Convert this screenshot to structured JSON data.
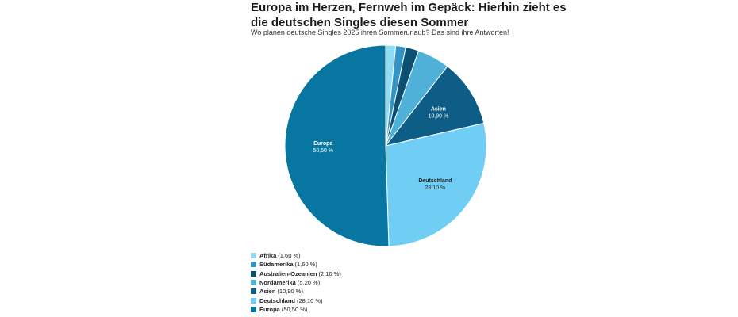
{
  "header": {
    "title": "Europa im Herzen, Fernweh im Gepäck: Hierhin zieht es die deutschen Singles diesen Sommer",
    "subtitle": "Wo planen deutsche Singles 2025 ihren Sommerurlaub? Das sind ihre Antworten!"
  },
  "chart_data": {
    "type": "pie",
    "title": "Europa im Herzen, Fernweh im Gepäck: Hierhin zieht es die deutschen Singles diesen Sommer",
    "subtitle": "Wo planen deutsche Singles 2025 ihren Sommerurlaub? Das sind ihre Antworten!",
    "unit": "%",
    "start_angle_deg": 0,
    "direction": "clockwise",
    "legend_position": "bottom-left",
    "slices": [
      {
        "label": "Afrika",
        "value": 1.6,
        "display": "1,60 %",
        "color": "#8fdcf7",
        "show_label": false
      },
      {
        "label": "Südamerika",
        "value": 1.6,
        "display": "1,60 %",
        "color": "#3494c3",
        "show_label": false
      },
      {
        "label": "Australien-Ozeanien",
        "value": 2.1,
        "display": "2,10 %",
        "color": "#0b4f73",
        "show_label": false
      },
      {
        "label": "Nordamerika",
        "value": 5.2,
        "display": "5,20 %",
        "color": "#4fb0d8",
        "show_label": false
      },
      {
        "label": "Asien",
        "value": 10.9,
        "display": "10,90 %",
        "color": "#0d5d86",
        "show_label": true
      },
      {
        "label": "Deutschland",
        "value": 28.1,
        "display": "28,10 %",
        "color": "#70cdf4",
        "show_label": true,
        "label_dark": true
      },
      {
        "label": "Europa",
        "value": 50.5,
        "display": "50,50 %",
        "color": "#0776a0",
        "show_label": true
      }
    ]
  },
  "legend": {
    "items": [
      {
        "name": "Afrika",
        "value": "(1,60 %)"
      },
      {
        "name": "Südamerika",
        "value": "(1,60 %)"
      },
      {
        "name": "Australien-Ozeanien",
        "value": "(2,10 %)"
      },
      {
        "name": "Nordamerika",
        "value": "(5,20 %)"
      },
      {
        "name": "Asien",
        "value": "(10,90 %)"
      },
      {
        "name": "Deutschland",
        "value": "(28,10 %)"
      },
      {
        "name": "Europa",
        "value": "(50,50 %)"
      }
    ]
  }
}
